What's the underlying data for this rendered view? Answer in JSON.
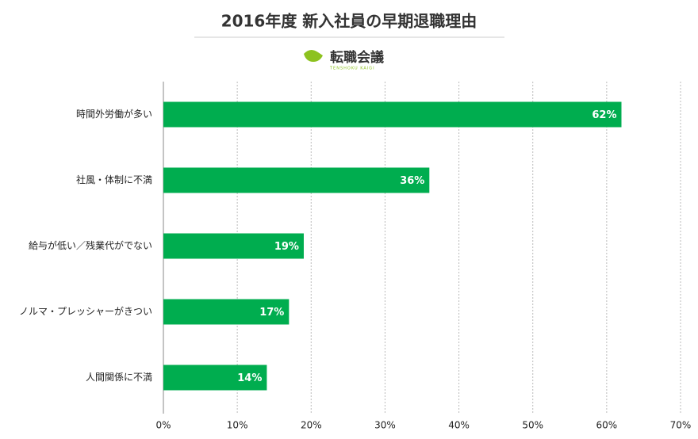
{
  "chart_data": {
    "type": "bar",
    "orientation": "horizontal",
    "title": "2016年度 新入社員の早期退職理由",
    "logo": {
      "text": "転職会議",
      "subtext": "TENSHOKU KAIGI"
    },
    "categories": [
      "時間外労働が多い",
      "社風・体制に不満",
      "給与が低い／残業代がでない",
      "ノルマ・プレッシャーがきつい",
      "人間関係に不満"
    ],
    "values": [
      62,
      36,
      19,
      17,
      14
    ],
    "value_labels": [
      "62%",
      "36%",
      "19%",
      "17%",
      "14%"
    ],
    "color": "#00ad4f",
    "xlim": [
      0,
      70
    ],
    "xticks": [
      {
        "value": 0,
        "label": "0%"
      },
      {
        "value": 10,
        "label": "10%"
      },
      {
        "value": 20,
        "label": "20%"
      },
      {
        "value": 30,
        "label": "30%"
      },
      {
        "value": 40,
        "label": "40%"
      },
      {
        "value": 50,
        "label": "50%"
      },
      {
        "value": 60,
        "label": "60%"
      },
      {
        "value": 70,
        "label": "70%"
      }
    ],
    "grid": true
  }
}
